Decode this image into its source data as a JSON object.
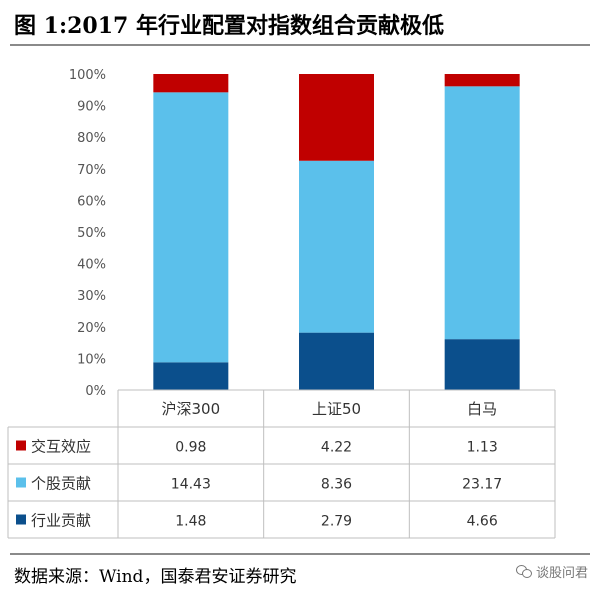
{
  "title": "图 1:2017 年行业配置对指数组合贡献极低",
  "source": "数据来源：Wind，国泰君安证券研究",
  "watermark": "谈股问君",
  "chart_data": {
    "type": "bar",
    "stacked": "percent",
    "categories": [
      "沪深300",
      "上证50",
      "白马"
    ],
    "series": [
      {
        "name": "交互效应",
        "values": [
          0.98,
          4.22,
          1.13
        ],
        "color": "#c00000"
      },
      {
        "name": "个股贡献",
        "values": [
          14.43,
          8.36,
          23.17
        ],
        "color": "#5bc0eb"
      },
      {
        "name": "行业贡献",
        "values": [
          1.48,
          2.79,
          4.66
        ],
        "color": "#0b4f8c"
      }
    ],
    "ylim": [
      0,
      100
    ],
    "yticks": [
      "0%",
      "10%",
      "20%",
      "30%",
      "40%",
      "50%",
      "60%",
      "70%",
      "80%",
      "90%",
      "100%"
    ],
    "grid": false,
    "data_table": true
  }
}
